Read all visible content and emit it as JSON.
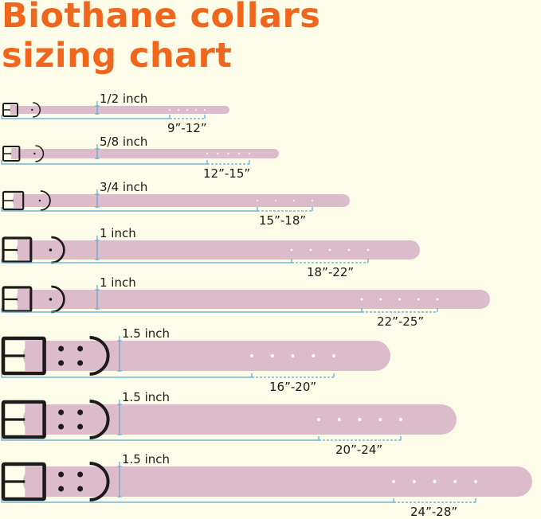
{
  "title": {
    "line1": "Biothane collars",
    "line2": "sizing chart"
  },
  "colors": {
    "title": "#f0661c",
    "background": "#fdfce9",
    "strap": "#dcbccb",
    "hardware": "#1b1b1b",
    "measure_line": "#5aa8d4"
  },
  "collars": [
    {
      "width": "1/2 inch",
      "size_range": "9”-12”"
    },
    {
      "width": "5/8 inch",
      "size_range": "12”-15”"
    },
    {
      "width": "3/4 inch",
      "size_range": "15”-18”"
    },
    {
      "width": "1 inch",
      "size_range": "18”-22”"
    },
    {
      "width": "1 inch",
      "size_range": "22”-25”"
    },
    {
      "width": "1.5 inch",
      "size_range": "16”-20”"
    },
    {
      "width": "1.5 inch",
      "size_range": "20”-24”"
    },
    {
      "width": "1.5 inch",
      "size_range": "24”-28”"
    }
  ]
}
